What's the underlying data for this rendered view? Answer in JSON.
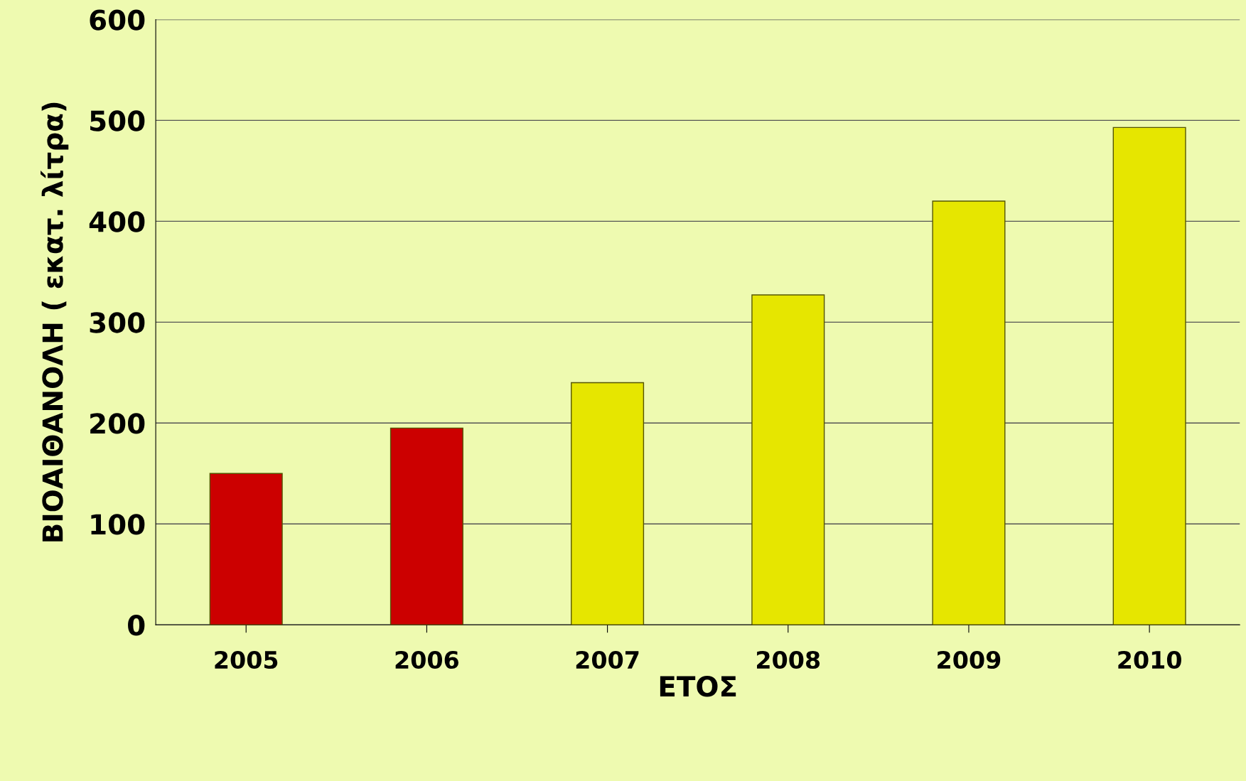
{
  "chart_data": {
    "type": "bar",
    "xlabel": "ΕΤΟΣ",
    "ylabel": "ΒΙΟΑΙΘΑΝΟΛΗ ( εκατ. λίτρα)",
    "categories": [
      "2005",
      "2006",
      "2007",
      "2008",
      "2009",
      "2010"
    ],
    "values": [
      150,
      195,
      240,
      327,
      420,
      493
    ],
    "colors": [
      "#cc0000",
      "#cc0000",
      "#e6e600",
      "#e6e600",
      "#e6e600",
      "#e6e600"
    ],
    "ylim": [
      0,
      600
    ],
    "yticks": [
      0,
      100,
      200,
      300,
      400,
      500,
      600
    ],
    "grid": "y",
    "legend": false
  }
}
